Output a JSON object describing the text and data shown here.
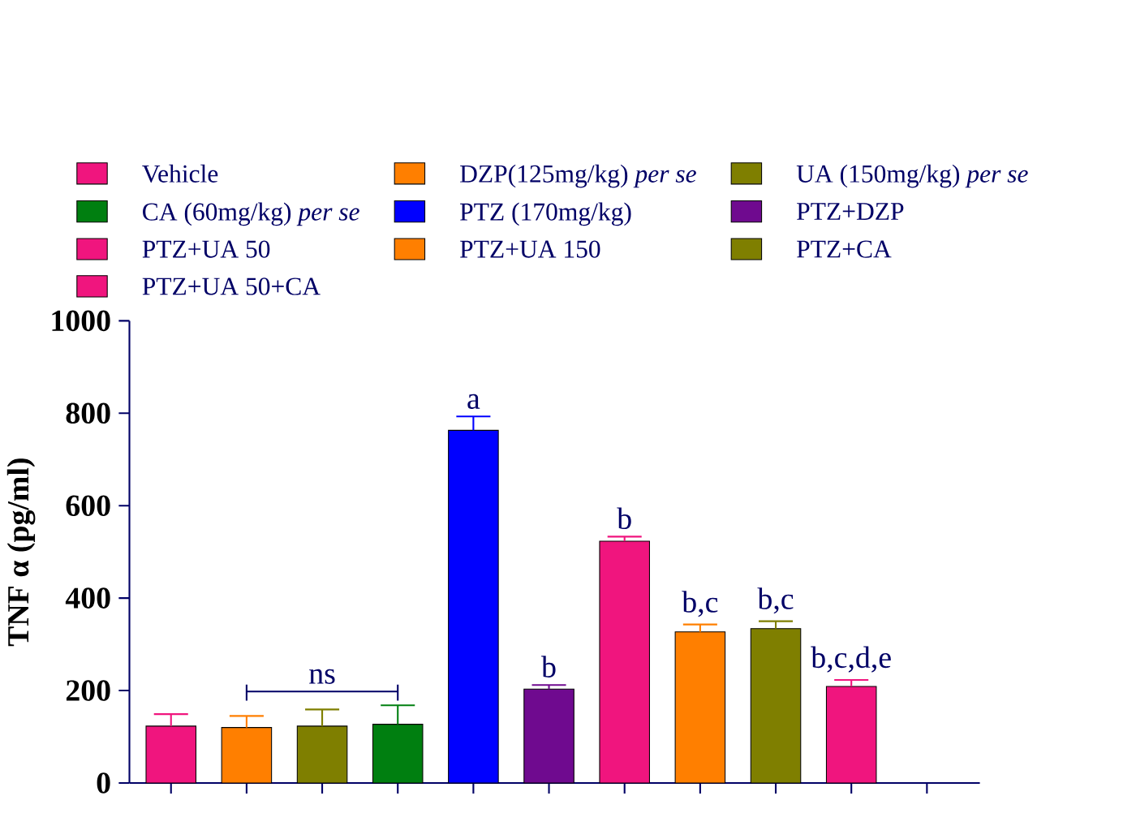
{
  "chart_data": {
    "type": "bar",
    "ylabel": "TNF α (pg/ml)",
    "categories": [
      null,
      null,
      null,
      null,
      null,
      null,
      null,
      null,
      null,
      null,
      null
    ],
    "series": [
      {
        "name": "Vehicle",
        "color": "#f0157e",
        "values": [
          123,
          null,
          null,
          null,
          null,
          null,
          null,
          null,
          null,
          null,
          null
        ],
        "errors": [
          26,
          null,
          null,
          null,
          null,
          null,
          null,
          null,
          null,
          null,
          null
        ]
      },
      {
        "name": "DZP(125mg/kg) *per se*",
        "color": "#ff7f00",
        "values": [
          null,
          120,
          null,
          null,
          null,
          null,
          null,
          null,
          null,
          null,
          null
        ],
        "errors": [
          null,
          25,
          null,
          null,
          null,
          null,
          null,
          null,
          null,
          null,
          null
        ]
      },
      {
        "name": "UA (150mg/kg) *per se*",
        "color": "#7f7f00",
        "values": [
          null,
          null,
          123,
          null,
          null,
          null,
          null,
          null,
          null,
          null,
          null
        ],
        "errors": [
          null,
          null,
          36,
          null,
          null,
          null,
          null,
          null,
          null,
          null,
          null
        ]
      },
      {
        "name": "CA (60mg/kg) *per se*",
        "color": "#007f10",
        "values": [
          null,
          null,
          null,
          127,
          null,
          null,
          null,
          null,
          null,
          null,
          null
        ],
        "errors": [
          null,
          null,
          null,
          41,
          null,
          null,
          null,
          null,
          null,
          null,
          null
        ]
      },
      {
        "name": "PTZ (170mg/kg)",
        "color": "#0000ff",
        "values": [
          null,
          null,
          null,
          null,
          763,
          null,
          null,
          null,
          null,
          null,
          null
        ],
        "errors": [
          null,
          null,
          null,
          null,
          30,
          null,
          null,
          null,
          null,
          null,
          null
        ],
        "value_labels": [
          null,
          null,
          null,
          null,
          "a",
          null,
          null,
          null,
          null,
          null,
          null
        ]
      },
      {
        "name": "PTZ+DZP",
        "color": "#6f0a8f",
        "values": [
          null,
          null,
          null,
          null,
          null,
          203,
          null,
          null,
          null,
          null,
          null
        ],
        "errors": [
          null,
          null,
          null,
          null,
          null,
          9,
          null,
          null,
          null,
          null,
          null
        ],
        "value_labels": [
          null,
          null,
          null,
          null,
          null,
          "b",
          null,
          null,
          null,
          null,
          null
        ]
      },
      {
        "name": "PTZ+UA 50",
        "color": "#f0157e",
        "values": [
          null,
          null,
          null,
          null,
          null,
          null,
          523,
          null,
          null,
          null,
          null
        ],
        "errors": [
          null,
          null,
          null,
          null,
          null,
          null,
          10,
          null,
          null,
          null,
          null
        ],
        "value_labels": [
          null,
          null,
          null,
          null,
          null,
          null,
          "b",
          null,
          null,
          null,
          null
        ]
      },
      {
        "name": "PTZ+UA 150",
        "color": "#ff7f00",
        "values": [
          null,
          null,
          null,
          null,
          null,
          null,
          null,
          327,
          null,
          null,
          null
        ],
        "errors": [
          null,
          null,
          null,
          null,
          null,
          null,
          null,
          16,
          null,
          null,
          null
        ],
        "value_labels": [
          null,
          null,
          null,
          null,
          null,
          null,
          null,
          "b,c",
          null,
          null,
          null
        ]
      },
      {
        "name": "PTZ+CA",
        "color": "#7f7f00",
        "values": [
          null,
          null,
          null,
          null,
          null,
          null,
          null,
          null,
          334,
          null,
          null
        ],
        "errors": [
          null,
          null,
          null,
          null,
          null,
          null,
          null,
          null,
          16,
          null,
          null
        ],
        "value_labels": [
          null,
          null,
          null,
          null,
          null,
          null,
          null,
          null,
          "b,c",
          null,
          null
        ]
      },
      {
        "name": "PTZ+UA 50+CA",
        "color": "#f0157e",
        "values": [
          null,
          null,
          null,
          null,
          null,
          null,
          null,
          null,
          null,
          209,
          null
        ],
        "errors": [
          null,
          null,
          null,
          null,
          null,
          null,
          null,
          null,
          null,
          14,
          null
        ],
        "value_labels": [
          null,
          null,
          null,
          null,
          null,
          null,
          null,
          null,
          null,
          "b,c,d,e",
          null
        ]
      }
    ],
    "annotations": [
      "ns"
    ],
    "ylim": [
      0,
      1000
    ],
    "yticks": [
      0,
      200,
      400,
      600,
      800,
      1000
    ],
    "legend": "top",
    "tick_labels": "y"
  }
}
